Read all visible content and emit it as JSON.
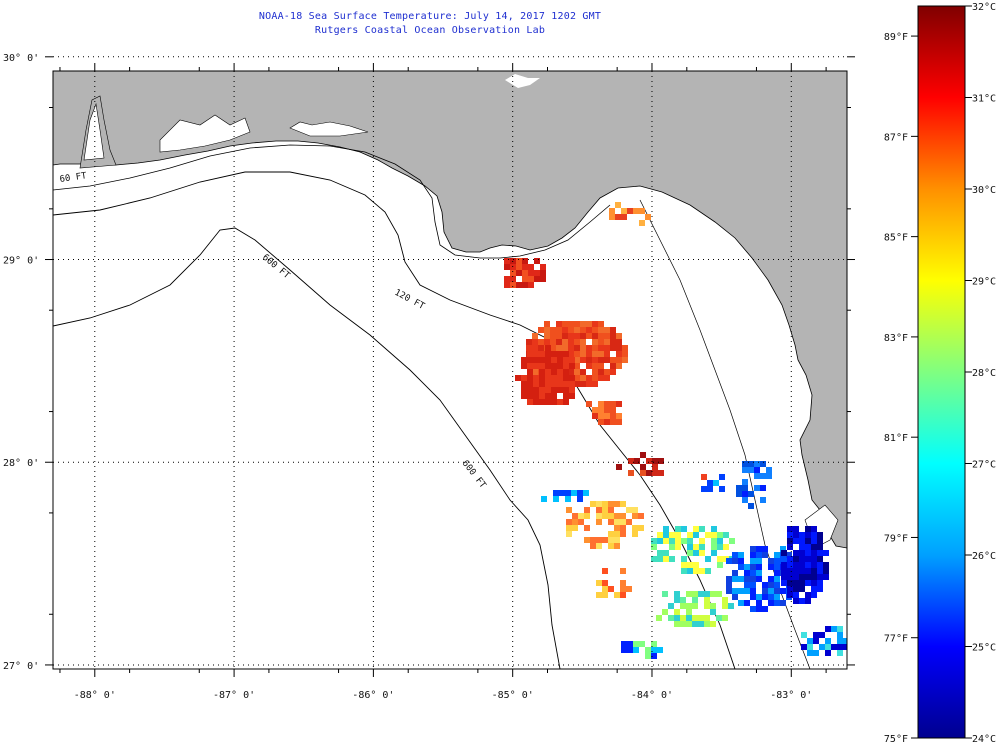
{
  "title": "NOAA-18 Sea Surface Temperature:  July 14, 2017 1202 GMT",
  "subtitle": "Rutgers Coastal Ocean Observation Lab",
  "map": {
    "lon_range": [
      -88.3,
      -82.6
    ],
    "lat_range": [
      26.98,
      29.93
    ],
    "lon_ticks": [
      {
        "value": -88,
        "label": "-88° 0'"
      },
      {
        "value": -87,
        "label": "-87° 0'"
      },
      {
        "value": -86,
        "label": "-86° 0'"
      },
      {
        "value": -85,
        "label": "-85° 0'"
      },
      {
        "value": -84,
        "label": "-84° 0'"
      },
      {
        "value": -83,
        "label": "-83° 0'"
      }
    ],
    "lat_ticks": [
      {
        "value": 30,
        "label": "30° 0'"
      },
      {
        "value": 29,
        "label": "29° 0'"
      },
      {
        "value": 28,
        "label": "28° 0'"
      },
      {
        "value": 27,
        "label": "27° 0'"
      }
    ],
    "contour_labels": [
      "60 FT",
      "120 FT",
      "600 FT",
      "600 FT"
    ],
    "land_color": "#b4b4b4",
    "water_color": "#ffffff"
  },
  "colorbar": {
    "celsius_labels": [
      "32°C",
      "31°C",
      "30°C",
      "29°C",
      "28°C",
      "27°C",
      "26°C",
      "25°C",
      "24°C"
    ],
    "fahrenheit_labels": [
      "89°F",
      "87°F",
      "85°F",
      "83°F",
      "81°F",
      "79°F",
      "77°F",
      "75°F"
    ],
    "celsius_range": [
      24,
      32
    ],
    "fahrenheit_range": [
      75,
      89.6
    ],
    "colormap": [
      "#00008f",
      "#0000ff",
      "#00a0ff",
      "#00ffff",
      "#80ff80",
      "#ffff00",
      "#ff9000",
      "#ff0000",
      "#800000"
    ]
  }
}
